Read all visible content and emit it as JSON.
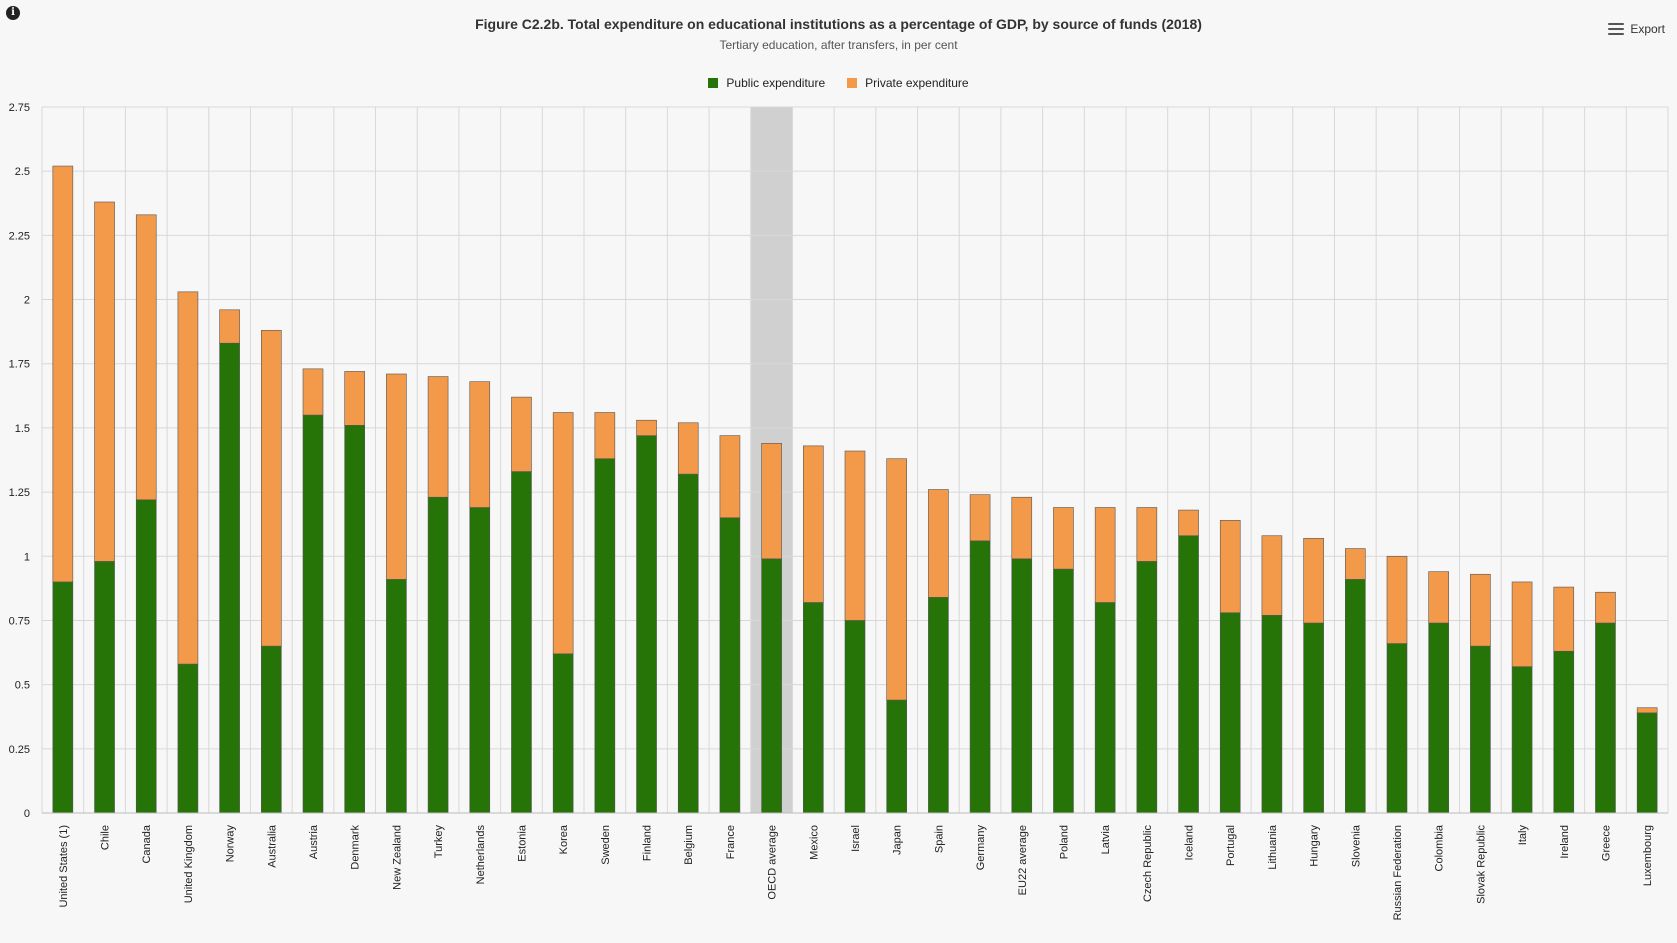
{
  "header": {
    "title": "Figure C2.2b. Total expenditure on educational institutions as a percentage of GDP, by source of funds (2018)",
    "subtitle": "Tertiary education, after transfers, in per cent",
    "export_label": "Export",
    "info_icon": "info-icon",
    "menu_icon": "menu-icon"
  },
  "colors": {
    "public": "#267307",
    "private": "#f2994a",
    "highlight": "#d0d0d0",
    "grid": "#d8d8d8"
  },
  "chart_data": {
    "type": "bar",
    "stacked": true,
    "title": "Figure C2.2b. Total expenditure on educational institutions as a percentage of GDP, by source of funds (2018)",
    "subtitle": "Tertiary education, after transfers, in per cent",
    "xlabel": "",
    "ylabel": "",
    "ylim": [
      0,
      2.75
    ],
    "yticks": [
      0,
      0.25,
      0.5,
      0.75,
      1,
      1.25,
      1.5,
      1.75,
      2,
      2.25,
      2.5,
      2.75
    ],
    "ytick_labels": [
      "0",
      "0.25",
      "0.5",
      "0.75",
      "1",
      "1.25",
      "1.5",
      "1.75",
      "2",
      "2.25",
      "2.5",
      "2.75"
    ],
    "grid": true,
    "legend_position": "top-center",
    "highlighted_category": "OECD average",
    "categories": [
      "United States (1)",
      "Chile",
      "Canada",
      "United Kingdom",
      "Norway",
      "Australia",
      "Austria",
      "Denmark",
      "New Zealand",
      "Turkey",
      "Netherlands",
      "Estonia",
      "Korea",
      "Sweden",
      "Finland",
      "Belgium",
      "France",
      "OECD average",
      "Mexico",
      "Israel",
      "Japan",
      "Spain",
      "Germany",
      "EU22 average",
      "Poland",
      "Latvia",
      "Czech Republic",
      "Iceland",
      "Portugal",
      "Lithuania",
      "Hungary",
      "Slovenia",
      "Russian Federation",
      "Colombia",
      "Slovak Republic",
      "Italy",
      "Ireland",
      "Greece",
      "Luxembourg"
    ],
    "series": [
      {
        "name": "Public expenditure",
        "color": "#267307",
        "values": [
          0.9,
          0.98,
          1.22,
          0.58,
          1.83,
          0.65,
          1.55,
          1.51,
          0.91,
          1.23,
          1.19,
          1.33,
          0.62,
          1.38,
          1.47,
          1.32,
          1.15,
          0.99,
          0.82,
          0.75,
          0.44,
          0.84,
          1.06,
          0.99,
          0.95,
          0.82,
          0.98,
          1.08,
          0.78,
          0.77,
          0.74,
          0.91,
          0.66,
          0.74,
          0.65,
          0.57,
          0.63,
          0.74,
          0.39
        ]
      },
      {
        "name": "Private expenditure",
        "color": "#f2994a",
        "values": [
          1.62,
          1.4,
          1.11,
          1.45,
          0.13,
          1.23,
          0.18,
          0.21,
          0.8,
          0.47,
          0.49,
          0.29,
          0.94,
          0.18,
          0.06,
          0.2,
          0.32,
          0.45,
          0.61,
          0.66,
          0.94,
          0.42,
          0.18,
          0.24,
          0.24,
          0.37,
          0.21,
          0.1,
          0.36,
          0.31,
          0.33,
          0.12,
          0.34,
          0.2,
          0.28,
          0.33,
          0.25,
          0.12,
          0.02
        ]
      }
    ]
  }
}
